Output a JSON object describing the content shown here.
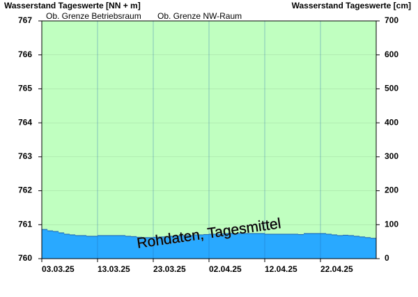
{
  "chart_data": {
    "type": "step-area",
    "y_label": "Wasserstand Tageswerte [NN + m]",
    "y2_label": "Wasserstand Tageswerte [cm]",
    "annotations": [
      "Ob. Grenze Betriebsraum",
      "Ob. Grenze NW-Raum",
      "Rohdaten, Tagesmittel"
    ],
    "categories": [
      "03.03.25",
      null,
      null,
      null,
      null,
      null,
      null,
      null,
      null,
      null,
      "13.03.25",
      null,
      null,
      null,
      null,
      null,
      null,
      null,
      null,
      null,
      "23.03.25",
      null,
      null,
      null,
      null,
      null,
      null,
      null,
      null,
      null,
      "02.04.25",
      null,
      null,
      null,
      null,
      null,
      null,
      null,
      null,
      null,
      "12.04.25",
      null,
      null,
      null,
      null,
      null,
      null,
      null,
      null,
      null,
      "22.04.25",
      null,
      null,
      null,
      null,
      null,
      null,
      null,
      null,
      null
    ],
    "values": [
      760.86,
      760.82,
      760.8,
      760.76,
      760.72,
      760.7,
      760.68,
      760.68,
      760.66,
      760.66,
      760.68,
      760.68,
      760.68,
      760.68,
      760.68,
      760.66,
      760.65,
      760.63,
      760.62,
      760.62,
      760.63,
      760.64,
      760.65,
      760.66,
      760.67,
      760.68,
      760.68,
      760.7,
      760.7,
      760.71,
      760.72,
      760.72,
      760.73,
      760.74,
      760.74,
      760.74,
      760.74,
      760.74,
      760.74,
      760.74,
      760.72,
      760.72,
      760.72,
      760.72,
      760.72,
      760.72,
      760.71,
      760.74,
      760.74,
      760.74,
      760.74,
      760.72,
      760.7,
      760.68,
      760.69,
      760.68,
      760.66,
      760.64,
      760.62,
      760.6
    ],
    "color": "#29a9ff",
    "background": "#c0ffc0",
    "ylim": [
      760,
      767
    ],
    "yticks": [
      760,
      761,
      762,
      763,
      764,
      765,
      766,
      767
    ],
    "y2lim": [
      0,
      700
    ],
    "y2ticks": [
      0,
      100,
      200,
      300,
      400,
      500,
      600,
      700
    ],
    "grid": true
  }
}
